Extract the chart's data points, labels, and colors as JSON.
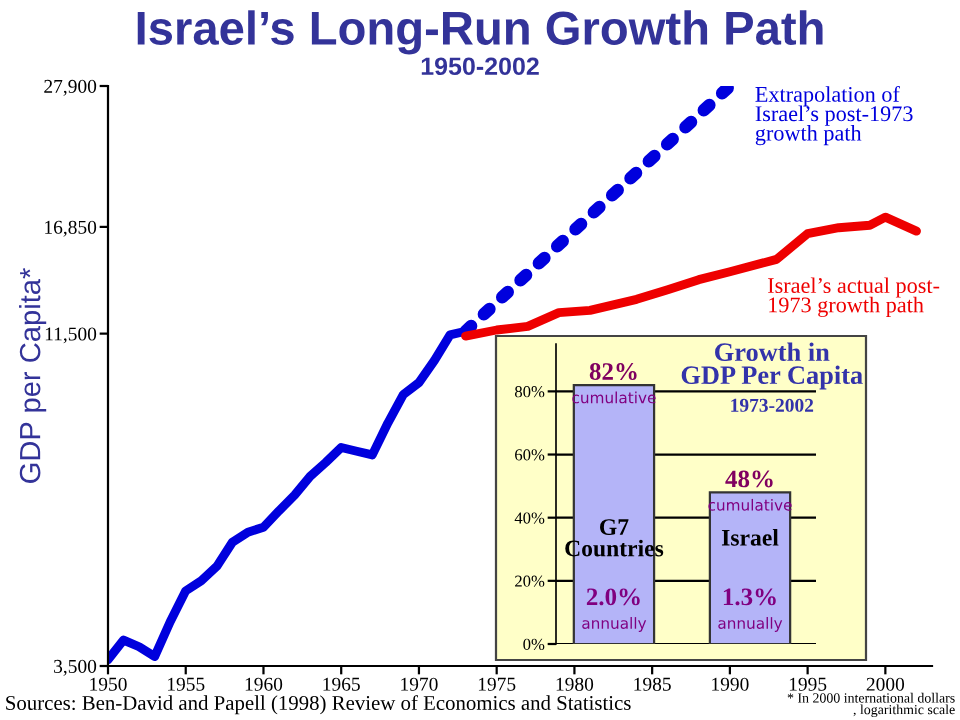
{
  "chart_data": [
    {
      "type": "line",
      "title": "Israel’s Long-Run Growth Path",
      "subtitle": "1950-2002",
      "ylabel": "GDP per Capita*",
      "log": "y",
      "xlim": [
        1950,
        2003
      ],
      "xticks": [
        1950,
        1955,
        1960,
        1965,
        1970,
        1975,
        1980,
        1985,
        1990,
        1995,
        2000
      ],
      "ylim": [
        3500,
        27900
      ],
      "yticks": [
        {
          "value": 3500,
          "label": "3,500"
        },
        {
          "value": 11500,
          "label": "11,500"
        },
        {
          "value": 16850,
          "label": "16,850"
        },
        {
          "value": 27900,
          "label": "27,900"
        }
      ],
      "grid": false,
      "legend": false,
      "series": [
        {
          "color": "#0000dd",
          "line_style": "solid",
          "x": [
            1950,
            1951,
            1952,
            1953,
            1954,
            1955,
            1956,
            1957,
            1958,
            1959,
            1960,
            1961,
            1962,
            1963,
            1964,
            1965,
            1966,
            1967,
            1968,
            1969,
            1970,
            1971,
            1972,
            1973
          ],
          "values": [
            3580,
            3840,
            3750,
            3620,
            4100,
            4580,
            4750,
            5000,
            5450,
            5650,
            5750,
            6100,
            6450,
            6900,
            7250,
            7650,
            7550,
            7450,
            8350,
            9250,
            9650,
            10450,
            11450,
            11600
          ]
        },
        {
          "color": "#0000dd",
          "line_style": "dotted",
          "x": [
            1973,
            1990
          ],
          "values": [
            11600,
            27900
          ]
        },
        {
          "color": "#ee0000",
          "line_style": "solid",
          "x": [
            1973,
            1975,
            1977,
            1979,
            1981,
            1984,
            1986,
            1988,
            1990,
            1993,
            1995,
            1997,
            1999,
            2000,
            2002
          ],
          "values": [
            11400,
            11650,
            11800,
            12400,
            12500,
            13000,
            13450,
            13950,
            14350,
            15000,
            16450,
            16800,
            16950,
            17450,
            16600
          ]
        }
      ],
      "annotations": [
        "Extrapolation of\nIsrael’s post-1973\ngrowth path",
        "Israel’s actual post-\n1973 growth path",
        "Sources: Ben-David and Papell (1998) Review of Economics and Statistics",
        "* In 2000 international dollars\n, logarithmic scale"
      ]
    },
    {
      "type": "bar",
      "title": "Growth in\nGDP Per Capita",
      "subtitle": "1973-2002",
      "categories": [
        "G7 Countries",
        "Israel"
      ],
      "values": [
        82,
        48
      ],
      "value_labels": [
        "82%",
        "48%"
      ],
      "color": "#b4b4f8",
      "ylim": [
        0,
        95
      ],
      "yticks": [
        {
          "value": 0,
          "label": "0%"
        },
        {
          "value": 20,
          "label": "20%"
        },
        {
          "value": 40,
          "label": "40%"
        },
        {
          "value": 60,
          "label": "60%"
        },
        {
          "value": 80,
          "label": "80%"
        }
      ],
      "grid": "y",
      "annotations": [
        "cumulative",
        "2.0%",
        "annually",
        "cumulative",
        "1.3%",
        "annually"
      ]
    }
  ]
}
